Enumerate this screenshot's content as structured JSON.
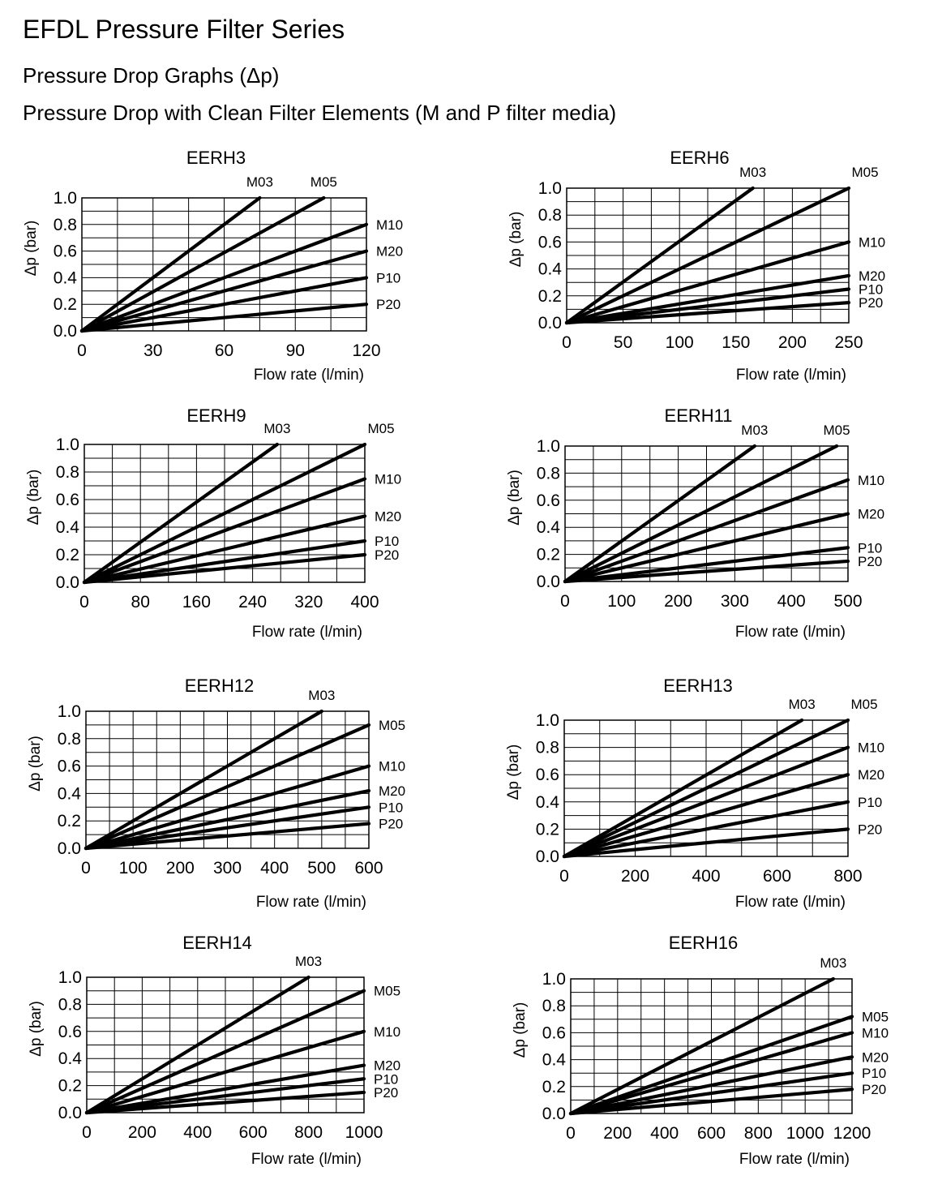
{
  "header": {
    "title": "EFDL  Pressure Filter Series",
    "subtitle": "Pressure Drop Graphs (Δp)",
    "subtitle2": "Pressure Drop with Clean Filter Elements (M and P filter media)"
  },
  "chart_data": [
    {
      "type": "line",
      "title": "EERH3",
      "xlabel": "Flow rate (l/min)",
      "ylabel": "Δp (bar)",
      "xlim": [
        0,
        120
      ],
      "ylim": [
        0,
        1.0
      ],
      "xticks": [
        "0",
        "30",
        "60",
        "90",
        "120"
      ],
      "yticks": [
        "0.0",
        "0.2",
        "0.4",
        "0.6",
        "0.8",
        "1.0"
      ],
      "series": [
        {
          "name": "M03",
          "x": [
            0,
            75
          ],
          "y": [
            0,
            1.0
          ]
        },
        {
          "name": "M05",
          "x": [
            0,
            102
          ],
          "y": [
            0,
            1.0
          ]
        },
        {
          "name": "M10",
          "x": [
            0,
            120
          ],
          "y": [
            0,
            0.8
          ]
        },
        {
          "name": "M20",
          "x": [
            0,
            120
          ],
          "y": [
            0,
            0.6
          ]
        },
        {
          "name": "P10",
          "x": [
            0,
            120
          ],
          "y": [
            0,
            0.4
          ]
        },
        {
          "name": "P20",
          "x": [
            0,
            120
          ],
          "y": [
            0,
            0.2
          ]
        }
      ]
    },
    {
      "type": "line",
      "title": "EERH6",
      "xlabel": "Flow rate (l/min)",
      "ylabel": "Δp (bar)",
      "xlim": [
        0,
        250
      ],
      "ylim": [
        0,
        1.0
      ],
      "xticks": [
        "0",
        "50",
        "100",
        "150",
        "200",
        "250"
      ],
      "yticks": [
        "0.0",
        "0.2",
        "0.4",
        "0.6",
        "0.8",
        "1.0"
      ],
      "series": [
        {
          "name": "M03",
          "x": [
            0,
            165
          ],
          "y": [
            0,
            1.0
          ]
        },
        {
          "name": "M05",
          "x": [
            0,
            250
          ],
          "y": [
            0,
            1.0
          ]
        },
        {
          "name": "M10",
          "x": [
            0,
            250
          ],
          "y": [
            0,
            0.6
          ]
        },
        {
          "name": "M20",
          "x": [
            0,
            250
          ],
          "y": [
            0,
            0.35
          ]
        },
        {
          "name": "P10",
          "x": [
            0,
            250
          ],
          "y": [
            0,
            0.25
          ]
        },
        {
          "name": "P20",
          "x": [
            0,
            250
          ],
          "y": [
            0,
            0.15
          ]
        }
      ]
    },
    {
      "type": "line",
      "title": "EERH9",
      "xlabel": "Flow rate (l/min)",
      "ylabel": "Δp (bar)",
      "xlim": [
        0,
        400
      ],
      "ylim": [
        0,
        1.0
      ],
      "xticks": [
        "0",
        "80",
        "160",
        "240",
        "320",
        "400"
      ],
      "yticks": [
        "0.0",
        "0.2",
        "0.4",
        "0.6",
        "0.8",
        "1.0"
      ],
      "series": [
        {
          "name": "M03",
          "x": [
            0,
            275
          ],
          "y": [
            0,
            1.0
          ]
        },
        {
          "name": "M05",
          "x": [
            0,
            400
          ],
          "y": [
            0,
            1.0
          ]
        },
        {
          "name": "M10",
          "x": [
            0,
            400
          ],
          "y": [
            0,
            0.75
          ]
        },
        {
          "name": "M20",
          "x": [
            0,
            400
          ],
          "y": [
            0,
            0.48
          ]
        },
        {
          "name": "P10",
          "x": [
            0,
            400
          ],
          "y": [
            0,
            0.3
          ]
        },
        {
          "name": "P20",
          "x": [
            0,
            400
          ],
          "y": [
            0,
            0.2
          ]
        }
      ]
    },
    {
      "type": "line",
      "title": "EERH11",
      "xlabel": "Flow rate (l/min)",
      "ylabel": "Δp (bar)",
      "xlim": [
        0,
        500
      ],
      "ylim": [
        0,
        1.0
      ],
      "xticks": [
        "0",
        "100",
        "200",
        "300",
        "400",
        "500"
      ],
      "yticks": [
        "0.0",
        "0.2",
        "0.4",
        "0.6",
        "0.8",
        "1.0"
      ],
      "series": [
        {
          "name": "M03",
          "x": [
            0,
            335
          ],
          "y": [
            0,
            1.0
          ]
        },
        {
          "name": "M05",
          "x": [
            0,
            480
          ],
          "y": [
            0,
            1.0
          ]
        },
        {
          "name": "M10",
          "x": [
            0,
            500
          ],
          "y": [
            0,
            0.75
          ]
        },
        {
          "name": "M20",
          "x": [
            0,
            500
          ],
          "y": [
            0,
            0.5
          ]
        },
        {
          "name": "P10",
          "x": [
            0,
            500
          ],
          "y": [
            0,
            0.25
          ]
        },
        {
          "name": "P20",
          "x": [
            0,
            500
          ],
          "y": [
            0,
            0.15
          ]
        }
      ]
    },
    {
      "type": "line",
      "title": "EERH12",
      "xlabel": "Flow rate (l/min)",
      "ylabel": "Δp (bar)",
      "xlim": [
        0,
        600
      ],
      "ylim": [
        0,
        1.0
      ],
      "xticks": [
        "0",
        "100",
        "200",
        "300",
        "400",
        "500",
        "600"
      ],
      "yticks": [
        "0.0",
        "0.2",
        "0.4",
        "0.6",
        "0.8",
        "1.0"
      ],
      "series": [
        {
          "name": "M03",
          "x": [
            0,
            500
          ],
          "y": [
            0,
            1.0
          ]
        },
        {
          "name": "M05",
          "x": [
            0,
            600
          ],
          "y": [
            0,
            0.9
          ]
        },
        {
          "name": "M10",
          "x": [
            0,
            600
          ],
          "y": [
            0,
            0.6
          ]
        },
        {
          "name": "M20",
          "x": [
            0,
            600
          ],
          "y": [
            0,
            0.42
          ]
        },
        {
          "name": "P10",
          "x": [
            0,
            600
          ],
          "y": [
            0,
            0.3
          ]
        },
        {
          "name": "P20",
          "x": [
            0,
            600
          ],
          "y": [
            0,
            0.18
          ]
        }
      ]
    },
    {
      "type": "line",
      "title": "EERH13",
      "xlabel": "Flow rate (l/min)",
      "ylabel": "Δp (bar)",
      "xlim": [
        0,
        800
      ],
      "ylim": [
        0,
        1.0
      ],
      "xticks": [
        "0",
        "200",
        "400",
        "600",
        "800"
      ],
      "yticks": [
        "0.0",
        "0.2",
        "0.4",
        "0.6",
        "0.8",
        "1.0"
      ],
      "series": [
        {
          "name": "M03",
          "x": [
            0,
            670
          ],
          "y": [
            0,
            1.0
          ]
        },
        {
          "name": "M05",
          "x": [
            0,
            800
          ],
          "y": [
            0,
            1.0
          ]
        },
        {
          "name": "M10",
          "x": [
            0,
            800
          ],
          "y": [
            0,
            0.8
          ]
        },
        {
          "name": "M20",
          "x": [
            0,
            800
          ],
          "y": [
            0,
            0.6
          ]
        },
        {
          "name": "P10",
          "x": [
            0,
            800
          ],
          "y": [
            0,
            0.4
          ]
        },
        {
          "name": "P20",
          "x": [
            0,
            800
          ],
          "y": [
            0,
            0.2
          ]
        }
      ]
    },
    {
      "type": "line",
      "title": "EERH14",
      "xlabel": "Flow rate (l/min)",
      "ylabel": "Δp (bar)",
      "xlim": [
        0,
        1000
      ],
      "ylim": [
        0,
        1.0
      ],
      "xticks": [
        "0",
        "200",
        "400",
        "600",
        "800",
        "1000"
      ],
      "yticks": [
        "0.0",
        "0.2",
        "0.4",
        "0.6",
        "0.8",
        "1.0"
      ],
      "series": [
        {
          "name": "M03",
          "x": [
            0,
            800
          ],
          "y": [
            0,
            1.0
          ]
        },
        {
          "name": "M05",
          "x": [
            0,
            1000
          ],
          "y": [
            0,
            0.9
          ]
        },
        {
          "name": "M10",
          "x": [
            0,
            1000
          ],
          "y": [
            0,
            0.6
          ]
        },
        {
          "name": "M20",
          "x": [
            0,
            1000
          ],
          "y": [
            0,
            0.35
          ]
        },
        {
          "name": "P10",
          "x": [
            0,
            1000
          ],
          "y": [
            0,
            0.25
          ]
        },
        {
          "name": "P20",
          "x": [
            0,
            1000
          ],
          "y": [
            0,
            0.15
          ]
        }
      ]
    },
    {
      "type": "line",
      "title": "EERH16",
      "xlabel": "Flow rate (l/min)",
      "ylabel": "Δp (bar)",
      "xlim": [
        0,
        1200
      ],
      "ylim": [
        0,
        1.0
      ],
      "xticks": [
        "0",
        "200",
        "400",
        "600",
        "800",
        "1000",
        "1200"
      ],
      "yticks": [
        "0.0",
        "0.2",
        "0.4",
        "0.6",
        "0.8",
        "1.0"
      ],
      "series": [
        {
          "name": "M03",
          "x": [
            0,
            1120
          ],
          "y": [
            0,
            1.0
          ]
        },
        {
          "name": "M05",
          "x": [
            0,
            1200
          ],
          "y": [
            0,
            0.72
          ]
        },
        {
          "name": "M10",
          "x": [
            0,
            1200
          ],
          "y": [
            0,
            0.6
          ]
        },
        {
          "name": "M20",
          "x": [
            0,
            1200
          ],
          "y": [
            0,
            0.42
          ]
        },
        {
          "name": "P10",
          "x": [
            0,
            1200
          ],
          "y": [
            0,
            0.3
          ]
        },
        {
          "name": "P20",
          "x": [
            0,
            1200
          ],
          "y": [
            0,
            0.18
          ]
        }
      ]
    }
  ]
}
